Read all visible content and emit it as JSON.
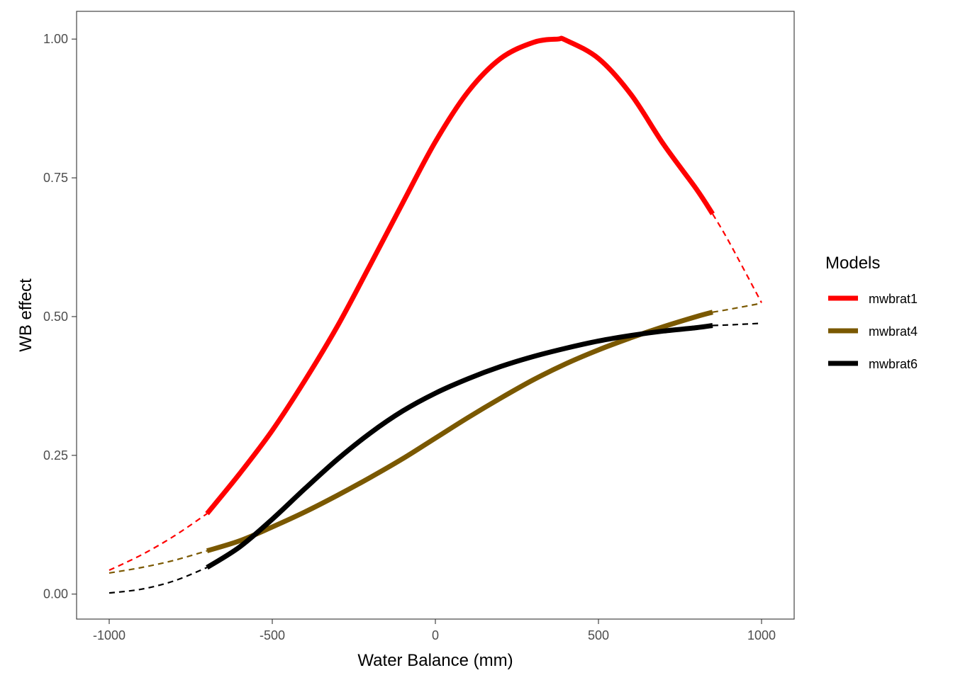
{
  "chart_data": {
    "type": "line",
    "title": "",
    "xlabel": "Water Balance (mm)",
    "ylabel": "WB effect",
    "xlim": [
      -1100,
      1100
    ],
    "ylim": [
      -0.045,
      1.05
    ],
    "x_ticks": [
      -1000,
      -500,
      0,
      500,
      1000
    ],
    "x_tick_labels": [
      "-1000",
      "-500",
      "0",
      "500",
      "1000"
    ],
    "y_ticks": [
      0,
      0.25,
      0.5,
      0.75,
      1.0
    ],
    "y_tick_labels": [
      "0.00",
      "0.25",
      "0.50",
      "0.75",
      "1.00"
    ],
    "grid": false,
    "legend": {
      "title": "Models",
      "placement": "right"
    },
    "observed_range_note": "solid segment spans observed range; dashed segments are extrapolations",
    "series": [
      {
        "name": "mwbrat1",
        "color": "#ff0000",
        "solid_range": [
          -700,
          850
        ],
        "x": [
          -1000,
          -900,
          -800,
          -700,
          -600,
          -500,
          -400,
          -300,
          -200,
          -100,
          0,
          100,
          200,
          300,
          375,
          400,
          500,
          600,
          700,
          800,
          850,
          900,
          1000
        ],
        "y": [
          0.043,
          0.071,
          0.105,
          0.145,
          0.217,
          0.295,
          0.385,
          0.483,
          0.593,
          0.705,
          0.815,
          0.905,
          0.965,
          0.994,
          1.0,
          0.998,
          0.965,
          0.9,
          0.81,
          0.73,
          0.685,
          0.635,
          0.525
        ]
      },
      {
        "name": "mwbrat4",
        "color": "#7a5800",
        "solid_range": [
          -700,
          850
        ],
        "x": [
          -1000,
          -900,
          -800,
          -700,
          -600,
          -500,
          -400,
          -300,
          -200,
          -100,
          0,
          100,
          200,
          300,
          400,
          500,
          600,
          700,
          800,
          850,
          900,
          1000
        ],
        "y": [
          0.038,
          0.048,
          0.061,
          0.078,
          0.096,
          0.121,
          0.148,
          0.178,
          0.21,
          0.244,
          0.281,
          0.318,
          0.353,
          0.386,
          0.415,
          0.44,
          0.462,
          0.482,
          0.5,
          0.508,
          0.513,
          0.524
        ]
      },
      {
        "name": "mwbrat6",
        "color": "#000000",
        "solid_range": [
          -700,
          850
        ],
        "x": [
          -1000,
          -900,
          -800,
          -700,
          -600,
          -500,
          -400,
          -300,
          -200,
          -100,
          0,
          100,
          200,
          300,
          400,
          500,
          600,
          700,
          800,
          850,
          900,
          1000
        ],
        "y": [
          0.002,
          0.009,
          0.024,
          0.048,
          0.085,
          0.135,
          0.19,
          0.243,
          0.29,
          0.33,
          0.362,
          0.388,
          0.41,
          0.428,
          0.443,
          0.456,
          0.466,
          0.474,
          0.48,
          0.484,
          0.485,
          0.488
        ]
      }
    ]
  }
}
